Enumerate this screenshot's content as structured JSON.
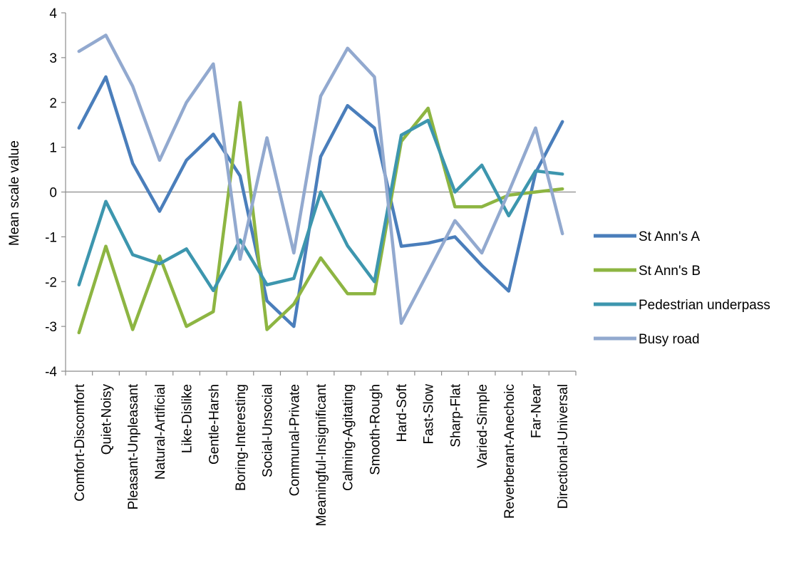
{
  "chart_data": {
    "type": "line",
    "ylabel": "Mean scale value",
    "xlabel": "",
    "ylim": [
      -4,
      4
    ],
    "yticks": [
      -4,
      -3,
      -2,
      -1,
      0,
      1,
      2,
      3,
      4
    ],
    "grid": false,
    "legend": "right",
    "categories": [
      "Comfort-Discomfort",
      "Quiet-Noisy",
      "Pleasant-Unpleasant",
      "Natural-Artificial",
      "Like-Dislike",
      "Gentle-Harsh",
      "Boring-Interesting",
      "Social-Unsocial",
      "Communal-Private",
      "Meaningful-Insignificant",
      "Calming-Agitating",
      "Smooth-Rough",
      "Hard-Soft",
      "Fast-Slow",
      "Sharp-Flat",
      "Varied-Simple",
      "Reverberant-Anechoic",
      "Far-Near",
      "Directional-Universal"
    ],
    "series": [
      {
        "name": "St Ann's A",
        "color": "#4a7ebb",
        "values": [
          1.43,
          2.57,
          0.64,
          -0.43,
          0.71,
          1.29,
          0.36,
          -2.43,
          -3.0,
          0.79,
          1.93,
          1.43,
          -1.21,
          -1.14,
          -1.0,
          -1.64,
          -2.21,
          0.43,
          1.57
        ]
      },
      {
        "name": "St Ann's B",
        "color": "#8db542",
        "values": [
          -3.14,
          -1.21,
          -3.07,
          -1.43,
          -3.0,
          -2.67,
          2.0,
          -3.07,
          -2.5,
          -1.47,
          -2.27,
          -2.27,
          1.13,
          1.87,
          -0.33,
          -0.33,
          -0.07,
          0.0,
          0.07
        ]
      },
      {
        "name": "Pedestrian underpass",
        "color": "#3d96ae",
        "values": [
          -2.07,
          -0.21,
          -1.4,
          -1.6,
          -1.27,
          -2.2,
          -1.07,
          -2.07,
          -1.93,
          0.0,
          -1.2,
          -2.0,
          1.27,
          1.6,
          0.0,
          0.6,
          -0.53,
          0.47,
          0.4
        ]
      },
      {
        "name": "Busy road",
        "color": "#92a9cf",
        "values": [
          3.14,
          3.5,
          2.36,
          0.71,
          2.0,
          2.86,
          -1.5,
          1.21,
          -1.36,
          2.14,
          3.21,
          2.57,
          -2.93,
          -1.79,
          -0.64,
          -1.36,
          0.0,
          1.43,
          -0.93
        ]
      }
    ]
  }
}
